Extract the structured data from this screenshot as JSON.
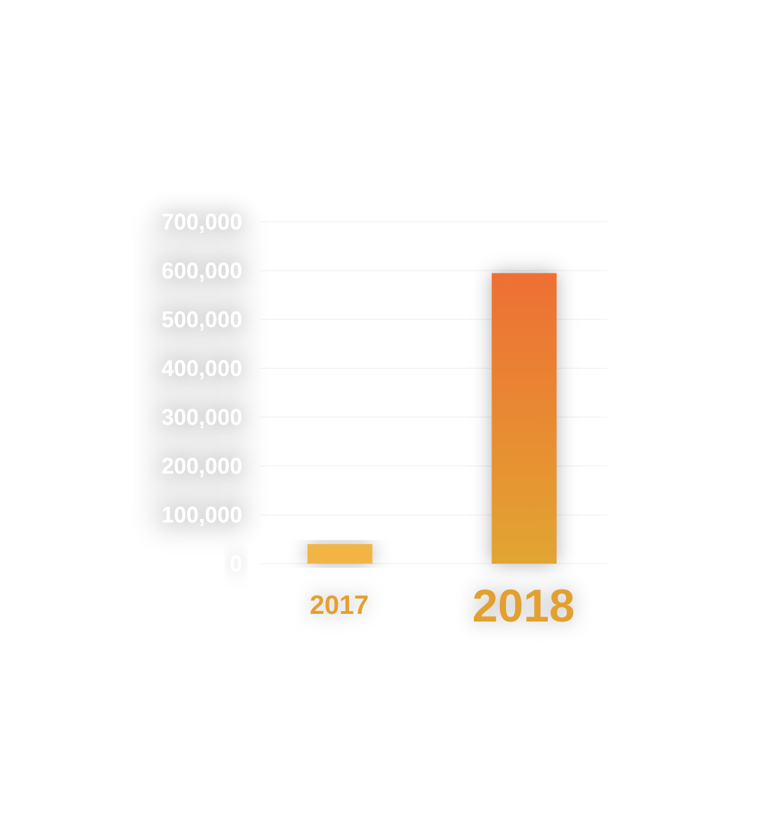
{
  "chart_data": {
    "type": "bar",
    "title": "",
    "xlabel": "",
    "ylabel": "",
    "categories": [
      "2017",
      "2018"
    ],
    "values": [
      40000,
      595000
    ],
    "ylim": [
      0,
      700000
    ],
    "yticks": [
      "0",
      "100,000",
      "200,000",
      "300,000",
      "400,000",
      "500,000",
      "600,000",
      "700,000"
    ],
    "grid": true,
    "legend": "none",
    "colors": {
      "bar_2017": "#f2b544",
      "bar_2018_top": "#ee6f34",
      "bar_2018_bottom": "#e2a531",
      "category_label": "#e2a033",
      "tick_label": "#ffffff",
      "gridline": "#ececec"
    }
  }
}
